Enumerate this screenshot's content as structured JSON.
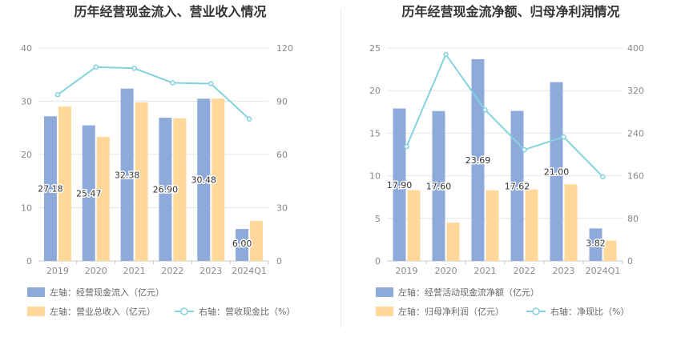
{
  "chart_data": [
    {
      "type": "bar",
      "title": "历年经营现金流入、营业收入情况",
      "categories": [
        "2019",
        "2020",
        "2021",
        "2022",
        "2023",
        "2024Q1"
      ],
      "left_axis": {
        "min": 0,
        "max": 40,
        "ticks": [
          "0",
          "10",
          "20",
          "30",
          "40"
        ]
      },
      "right_axis": {
        "min": 0,
        "max": 120,
        "ticks": [
          "0",
          "30",
          "60",
          "90",
          "120"
        ]
      },
      "series": [
        {
          "name": "左轴：经营现金流入（亿元）",
          "axis": "left",
          "kind": "bar",
          "color": "#8eaadb",
          "values": [
            27.18,
            25.47,
            32.38,
            26.9,
            30.48,
            6.0
          ],
          "labels": [
            "27.18",
            "25.47",
            "32.38",
            "26.90",
            "30.48",
            "6.00"
          ]
        },
        {
          "name": "左轴：营业总收入（亿元）",
          "axis": "left",
          "kind": "bar",
          "color": "#ffd89a",
          "values": [
            29.0,
            23.3,
            29.8,
            26.8,
            30.5,
            7.5
          ]
        },
        {
          "name": "右轴：营收现金比（%）",
          "axis": "right",
          "kind": "line",
          "color": "#83d3df",
          "values": [
            93.7,
            109.3,
            108.6,
            100.4,
            99.9,
            80.0
          ]
        }
      ],
      "grid": true,
      "legend_position": "bottom"
    },
    {
      "type": "bar",
      "title": "历年经营现金流净额、归母净利润情况",
      "categories": [
        "2019",
        "2020",
        "2021",
        "2022",
        "2023",
        "2024Q1"
      ],
      "left_axis": {
        "min": 0,
        "max": 25,
        "ticks": [
          "0",
          "5",
          "10",
          "15",
          "20",
          "25"
        ]
      },
      "right_axis": {
        "min": 0,
        "max": 400,
        "ticks": [
          "0",
          "80",
          "160",
          "240",
          "320",
          "400"
        ]
      },
      "series": [
        {
          "name": "左轴：经营活动现金流净额（亿元）",
          "axis": "left",
          "kind": "bar",
          "color": "#8eaadb",
          "values": [
            17.9,
            17.6,
            23.69,
            17.62,
            21.0,
            3.82
          ],
          "labels": [
            "17.90",
            "17.60",
            "23.69",
            "17.62",
            "21.00",
            "3.82"
          ]
        },
        {
          "name": "左轴：归母净利润（亿元）",
          "axis": "left",
          "kind": "bar",
          "color": "#ffd89a",
          "values": [
            8.3,
            4.5,
            8.3,
            8.4,
            9.0,
            2.4
          ]
        },
        {
          "name": "右轴：净现比（%）",
          "axis": "right",
          "kind": "line",
          "color": "#83d3df",
          "values": [
            215,
            388,
            284,
            209,
            233,
            158
          ]
        }
      ],
      "grid": true,
      "legend_position": "bottom"
    }
  ]
}
